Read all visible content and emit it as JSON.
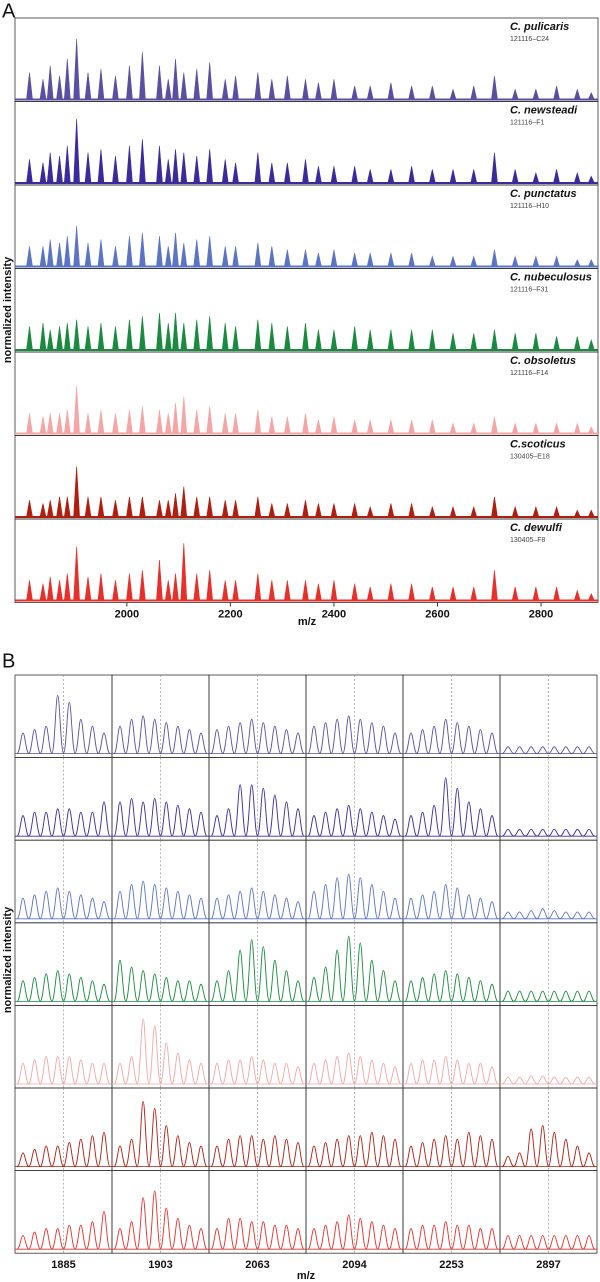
{
  "chart_data": [
    {
      "type": "spectra",
      "label": "A",
      "x_label": "m/z",
      "y_label": "normalized intensity",
      "xlim": [
        1784,
        2910
      ],
      "xticks": [
        2000,
        2200,
        2400,
        2600,
        2800
      ],
      "ylim": [
        0,
        1
      ],
      "x": [
        1812,
        1838,
        1852,
        1870,
        1885,
        1903,
        1925,
        1950,
        1978,
        2005,
        2030,
        2063,
        2080,
        2094,
        2110,
        2135,
        2160,
        2190,
        2210,
        2253,
        2280,
        2310,
        2345,
        2370,
        2400,
        2440,
        2470,
        2510,
        2550,
        2590,
        2630,
        2670,
        2710,
        2750,
        2790,
        2830,
        2870,
        2897
      ],
      "series": [
        {
          "name": "C. pulicaris",
          "sample": "121116–C24",
          "color": "#5a4fa0",
          "values": [
            0.4,
            0.3,
            0.5,
            0.35,
            0.6,
            0.9,
            0.4,
            0.45,
            0.35,
            0.5,
            0.7,
            0.5,
            0.3,
            0.6,
            0.4,
            0.45,
            0.55,
            0.3,
            0.35,
            0.4,
            0.3,
            0.35,
            0.3,
            0.25,
            0.3,
            0.2,
            0.2,
            0.25,
            0.2,
            0.2,
            0.15,
            0.2,
            0.35,
            0.15,
            0.15,
            0.2,
            0.15,
            0.1
          ]
        },
        {
          "name": "C. newsteadi",
          "sample": "121116–F1",
          "color": "#3a2a9c",
          "values": [
            0.35,
            0.3,
            0.45,
            0.4,
            0.55,
            0.95,
            0.45,
            0.5,
            0.4,
            0.55,
            0.65,
            0.55,
            0.35,
            0.5,
            0.45,
            0.4,
            0.5,
            0.35,
            0.3,
            0.45,
            0.3,
            0.3,
            0.35,
            0.25,
            0.25,
            0.25,
            0.2,
            0.2,
            0.25,
            0.2,
            0.2,
            0.2,
            0.45,
            0.2,
            0.15,
            0.2,
            0.15,
            0.1
          ]
        },
        {
          "name": "C. punctatus",
          "sample": "121116–H10",
          "color": "#5b74c4",
          "values": [
            0.3,
            0.3,
            0.4,
            0.35,
            0.45,
            0.6,
            0.35,
            0.4,
            0.3,
            0.45,
            0.5,
            0.45,
            0.3,
            0.5,
            0.35,
            0.4,
            0.45,
            0.3,
            0.3,
            0.35,
            0.3,
            0.25,
            0.25,
            0.2,
            0.25,
            0.2,
            0.2,
            0.2,
            0.2,
            0.15,
            0.15,
            0.15,
            0.25,
            0.15,
            0.15,
            0.15,
            0.1,
            0.1
          ]
        },
        {
          "name": "C. nubeculosus",
          "sample": "121116–F31",
          "color": "#1a8a3e",
          "values": [
            0.35,
            0.4,
            0.3,
            0.35,
            0.4,
            0.45,
            0.35,
            0.4,
            0.35,
            0.45,
            0.5,
            0.55,
            0.4,
            0.55,
            0.4,
            0.45,
            0.5,
            0.4,
            0.35,
            0.45,
            0.4,
            0.35,
            0.4,
            0.3,
            0.3,
            0.35,
            0.3,
            0.3,
            0.3,
            0.3,
            0.25,
            0.25,
            0.3,
            0.25,
            0.25,
            0.2,
            0.2,
            0.15
          ]
        },
        {
          "name": "C. obsoletus",
          "sample": "121116–F14",
          "color": "#f4a6a6",
          "values": [
            0.3,
            0.25,
            0.3,
            0.3,
            0.35,
            0.7,
            0.3,
            0.35,
            0.3,
            0.35,
            0.4,
            0.35,
            0.3,
            0.45,
            0.55,
            0.35,
            0.4,
            0.3,
            0.3,
            0.35,
            0.25,
            0.25,
            0.3,
            0.2,
            0.25,
            0.2,
            0.2,
            0.2,
            0.2,
            0.2,
            0.15,
            0.15,
            0.25,
            0.15,
            0.15,
            0.15,
            0.15,
            0.1
          ]
        },
        {
          "name": "C.scoticus",
          "sample": "130405–E18",
          "color": "#b01e10",
          "values": [
            0.25,
            0.2,
            0.25,
            0.3,
            0.3,
            0.75,
            0.3,
            0.3,
            0.25,
            0.3,
            0.3,
            0.25,
            0.25,
            0.35,
            0.45,
            0.3,
            0.3,
            0.25,
            0.25,
            0.3,
            0.2,
            0.2,
            0.25,
            0.2,
            0.2,
            0.2,
            0.15,
            0.2,
            0.2,
            0.15,
            0.15,
            0.15,
            0.3,
            0.15,
            0.15,
            0.15,
            0.1,
            0.1
          ]
        },
        {
          "name": "C. dewulfi",
          "sample": "130405–F8",
          "color": "#e8302a",
          "values": [
            0.3,
            0.25,
            0.35,
            0.3,
            0.4,
            0.8,
            0.35,
            0.4,
            0.3,
            0.4,
            0.45,
            0.6,
            0.3,
            0.4,
            0.85,
            0.4,
            0.45,
            0.3,
            0.3,
            0.4,
            0.3,
            0.3,
            0.3,
            0.25,
            0.3,
            0.25,
            0.2,
            0.25,
            0.25,
            0.2,
            0.2,
            0.2,
            0.45,
            0.2,
            0.2,
            0.2,
            0.15,
            0.1
          ]
        }
      ]
    },
    {
      "type": "isotope-grid",
      "label": "B",
      "x_label": "m/z",
      "y_label": "normalized intensity",
      "categories": [
        1885,
        1903,
        2063,
        2094,
        2253,
        2897
      ],
      "ylim": [
        0,
        1
      ],
      "series": [
        {
          "color": "#5a4fa0",
          "values": [
            [
              0.3,
              0.35,
              0.4,
              0.85,
              0.75,
              0.5,
              0.4,
              0.3
            ],
            [
              0.4,
              0.5,
              0.55,
              0.5,
              0.45,
              0.4,
              0.35,
              0.3
            ],
            [
              0.35,
              0.4,
              0.45,
              0.5,
              0.45,
              0.4,
              0.35,
              0.3
            ],
            [
              0.4,
              0.45,
              0.5,
              0.55,
              0.5,
              0.45,
              0.4,
              0.3
            ],
            [
              0.3,
              0.35,
              0.4,
              0.5,
              0.45,
              0.4,
              0.35,
              0.3
            ],
            [
              0.1,
              0.1,
              0.1,
              0.1,
              0.1,
              0.1,
              0.1,
              0.1
            ]
          ]
        },
        {
          "color": "#3a2a9c",
          "values": [
            [
              0.3,
              0.35,
              0.35,
              0.4,
              0.4,
              0.35,
              0.35,
              0.5
            ],
            [
              0.5,
              0.55,
              0.5,
              0.55,
              0.5,
              0.45,
              0.4,
              0.35
            ],
            [
              0.3,
              0.4,
              0.75,
              0.75,
              0.7,
              0.6,
              0.5,
              0.4
            ],
            [
              0.3,
              0.35,
              0.4,
              0.45,
              0.4,
              0.35,
              0.3,
              0.25
            ],
            [
              0.3,
              0.35,
              0.45,
              0.85,
              0.7,
              0.5,
              0.4,
              0.3
            ],
            [
              0.1,
              0.1,
              0.1,
              0.1,
              0.1,
              0.1,
              0.1,
              0.1
            ]
          ]
        },
        {
          "color": "#5b74c4",
          "values": [
            [
              0.3,
              0.35,
              0.4,
              0.45,
              0.4,
              0.35,
              0.3,
              0.25
            ],
            [
              0.4,
              0.5,
              0.55,
              0.5,
              0.45,
              0.4,
              0.35,
              0.3
            ],
            [
              0.3,
              0.35,
              0.4,
              0.45,
              0.4,
              0.35,
              0.3,
              0.25
            ],
            [
              0.4,
              0.5,
              0.6,
              0.65,
              0.6,
              0.5,
              0.4,
              0.3
            ],
            [
              0.3,
              0.35,
              0.4,
              0.5,
              0.45,
              0.35,
              0.3,
              0.25
            ],
            [
              0.1,
              0.1,
              0.12,
              0.15,
              0.12,
              0.1,
              0.1,
              0.1
            ]
          ]
        },
        {
          "color": "#1a8a3e",
          "values": [
            [
              0.3,
              0.35,
              0.4,
              0.45,
              0.4,
              0.35,
              0.3,
              0.25
            ],
            [
              0.6,
              0.5,
              0.45,
              0.4,
              0.35,
              0.3,
              0.3,
              0.25
            ],
            [
              0.3,
              0.45,
              0.75,
              0.9,
              0.8,
              0.6,
              0.45,
              0.3
            ],
            [
              0.35,
              0.5,
              0.75,
              0.95,
              0.85,
              0.6,
              0.45,
              0.3
            ],
            [
              0.3,
              0.35,
              0.4,
              0.45,
              0.4,
              0.35,
              0.3,
              0.25
            ],
            [
              0.15,
              0.15,
              0.15,
              0.15,
              0.15,
              0.15,
              0.15,
              0.15
            ]
          ]
        },
        {
          "color": "#f4a6a6",
          "values": [
            [
              0.3,
              0.35,
              0.4,
              0.4,
              0.4,
              0.35,
              0.3,
              0.3
            ],
            [
              0.3,
              0.4,
              0.95,
              0.85,
              0.6,
              0.45,
              0.35,
              0.3
            ],
            [
              0.3,
              0.35,
              0.35,
              0.4,
              0.35,
              0.3,
              0.3,
              0.25
            ],
            [
              0.3,
              0.35,
              0.4,
              0.45,
              0.4,
              0.35,
              0.3,
              0.25
            ],
            [
              0.3,
              0.35,
              0.35,
              0.4,
              0.35,
              0.3,
              0.3,
              0.25
            ],
            [
              0.1,
              0.1,
              0.12,
              0.12,
              0.1,
              0.1,
              0.1,
              0.1
            ]
          ]
        },
        {
          "color": "#b01e10",
          "values": [
            [
              0.2,
              0.25,
              0.3,
              0.3,
              0.35,
              0.4,
              0.45,
              0.5
            ],
            [
              0.3,
              0.4,
              0.95,
              0.85,
              0.6,
              0.45,
              0.35,
              0.3
            ],
            [
              0.3,
              0.4,
              0.45,
              0.45,
              0.4,
              0.45,
              0.4,
              0.35
            ],
            [
              0.3,
              0.35,
              0.4,
              0.45,
              0.45,
              0.5,
              0.45,
              0.4
            ],
            [
              0.3,
              0.35,
              0.4,
              0.45,
              0.4,
              0.5,
              0.45,
              0.4
            ],
            [
              0.15,
              0.2,
              0.55,
              0.6,
              0.5,
              0.4,
              0.3,
              0.2
            ]
          ]
        },
        {
          "color": "#e8302a",
          "values": [
            [
              0.2,
              0.25,
              0.3,
              0.3,
              0.35,
              0.35,
              0.4,
              0.55
            ],
            [
              0.3,
              0.4,
              0.75,
              0.85,
              0.6,
              0.45,
              0.35,
              0.3
            ],
            [
              0.3,
              0.45,
              0.45,
              0.4,
              0.4,
              0.35,
              0.35,
              0.3
            ],
            [
              0.3,
              0.35,
              0.4,
              0.5,
              0.45,
              0.4,
              0.35,
              0.3
            ],
            [
              0.3,
              0.35,
              0.35,
              0.4,
              0.35,
              0.35,
              0.3,
              0.3
            ],
            [
              0.2,
              0.2,
              0.2,
              0.2,
              0.2,
              0.2,
              0.2,
              0.2
            ]
          ]
        }
      ]
    }
  ]
}
